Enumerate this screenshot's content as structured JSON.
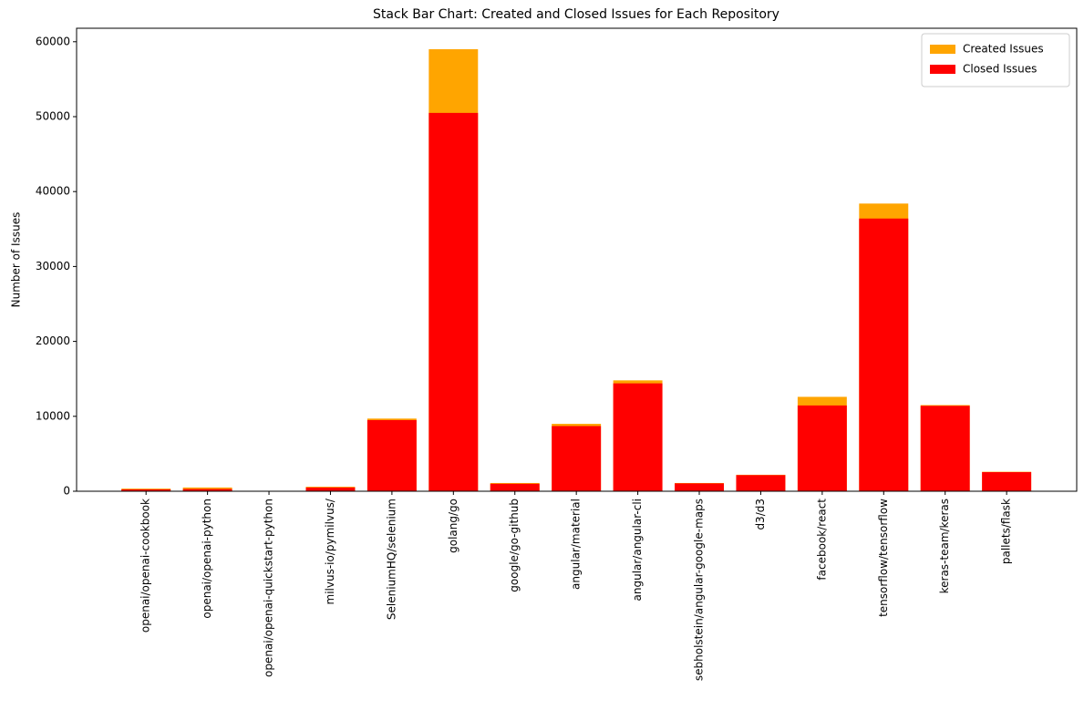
{
  "chart_data": {
    "type": "bar",
    "title": "Stack Bar Chart: Created and Closed Issues for Each Repository",
    "y_label": "Number of Issues",
    "categories": [
      "openai/openai-cookbook",
      "openai/openai-python",
      "openai/openai-quickstart-python",
      "milvus-io/pymilvus/",
      "SeleniumHQ/selenium",
      "golang/go",
      "google/go-github",
      "angular/material",
      "angular/angular-cli",
      "sebholstein/angular-google-maps",
      "d3/d3",
      "facebook/react",
      "tensorflow/tensorflow",
      "keras-team/keras",
      "pallets/flask"
    ],
    "series": [
      {
        "name": "Created Issues",
        "color": "#ffa500",
        "values": [
          350,
          500,
          20,
          600,
          9700,
          59000,
          1100,
          9000,
          14800,
          1100,
          2200,
          12600,
          38400,
          11500,
          2600
        ]
      },
      {
        "name": "Closed Issues",
        "color": "#ff0000",
        "values": [
          250,
          300,
          15,
          500,
          9500,
          50500,
          1000,
          8700,
          14400,
          1050,
          2150,
          11450,
          36400,
          11400,
          2550
        ]
      }
    ],
    "ylim": [
      0,
      61800
    ],
    "yticks": [
      0,
      10000,
      20000,
      30000,
      40000,
      50000,
      60000
    ],
    "legend": "upper right",
    "grid": false
  }
}
